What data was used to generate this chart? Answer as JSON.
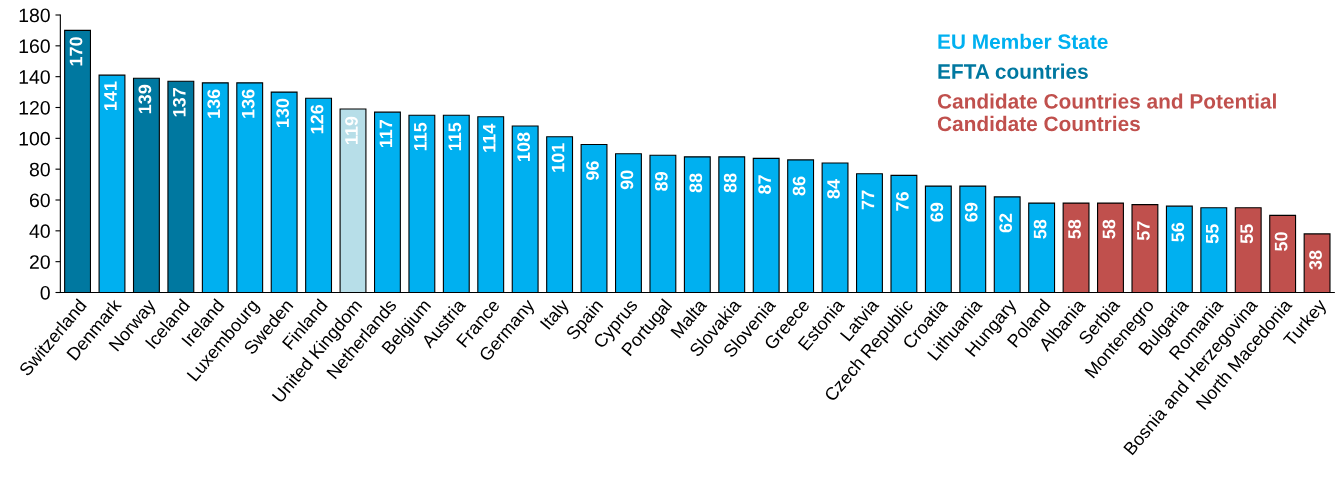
{
  "chart_data": {
    "type": "bar",
    "categories": [
      "Switzerland",
      "Denmark",
      "Norway",
      "Iceland",
      "Ireland",
      "Luxembourg",
      "Sweden",
      "Finland",
      "United Kingdom",
      "Netherlands",
      "Belgium",
      "Austria",
      "France",
      "Germany",
      "Italy",
      "Spain",
      "Cyprus",
      "Portugal",
      "Malta",
      "Slovakia",
      "Slovenia",
      "Greece",
      "Estonia",
      "Latvia",
      "Czech Republic",
      "Croatia",
      "Lithuania",
      "Hungary",
      "Poland",
      "Albania",
      "Serbia",
      "Montenegro",
      "Bulgaria",
      "Romania",
      "Bosnia and Herzegovina",
      "North Macedonia",
      "Turkey"
    ],
    "series": [
      {
        "name": "EU Member State",
        "color": "#00b0f0",
        "values": [
          null,
          141,
          null,
          null,
          136,
          136,
          130,
          126,
          null,
          117,
          115,
          115,
          114,
          108,
          101,
          96,
          90,
          89,
          88,
          88,
          87,
          86,
          84,
          77,
          76,
          69,
          69,
          62,
          58,
          null,
          null,
          null,
          56,
          55,
          null,
          null,
          null
        ]
      },
      {
        "name": "EFTA countries",
        "color": "#0078a0",
        "values": [
          170,
          null,
          139,
          137,
          null,
          null,
          null,
          null,
          null,
          null,
          null,
          null,
          null,
          null,
          null,
          null,
          null,
          null,
          null,
          null,
          null,
          null,
          null,
          null,
          null,
          null,
          null,
          null,
          null,
          null,
          null,
          null,
          null,
          null,
          null,
          null,
          null
        ]
      },
      {
        "name": "Candidate Countries and Potential\nCandidate Countries",
        "color": "#c0504d",
        "values": [
          null,
          null,
          null,
          null,
          null,
          null,
          null,
          null,
          null,
          null,
          null,
          null,
          null,
          null,
          null,
          null,
          null,
          null,
          null,
          null,
          null,
          null,
          null,
          null,
          null,
          null,
          null,
          null,
          null,
          58,
          58,
          57,
          null,
          null,
          55,
          50,
          38
        ]
      },
      {
        "color": "#b7dee8",
        "values": [
          null,
          null,
          null,
          null,
          null,
          null,
          null,
          null,
          119,
          null,
          null,
          null,
          null,
          null,
          null,
          null,
          null,
          null,
          null,
          null,
          null,
          null,
          null,
          null,
          null,
          null,
          null,
          null,
          null,
          null,
          null,
          null,
          null,
          null,
          null,
          null,
          null
        ]
      }
    ],
    "ylim": [
      0,
      180
    ],
    "yticks": [
      0,
      20,
      40,
      60,
      80,
      100,
      120,
      140,
      160,
      180
    ],
    "data_labels": true,
    "grid": false,
    "legend": "top right"
  }
}
